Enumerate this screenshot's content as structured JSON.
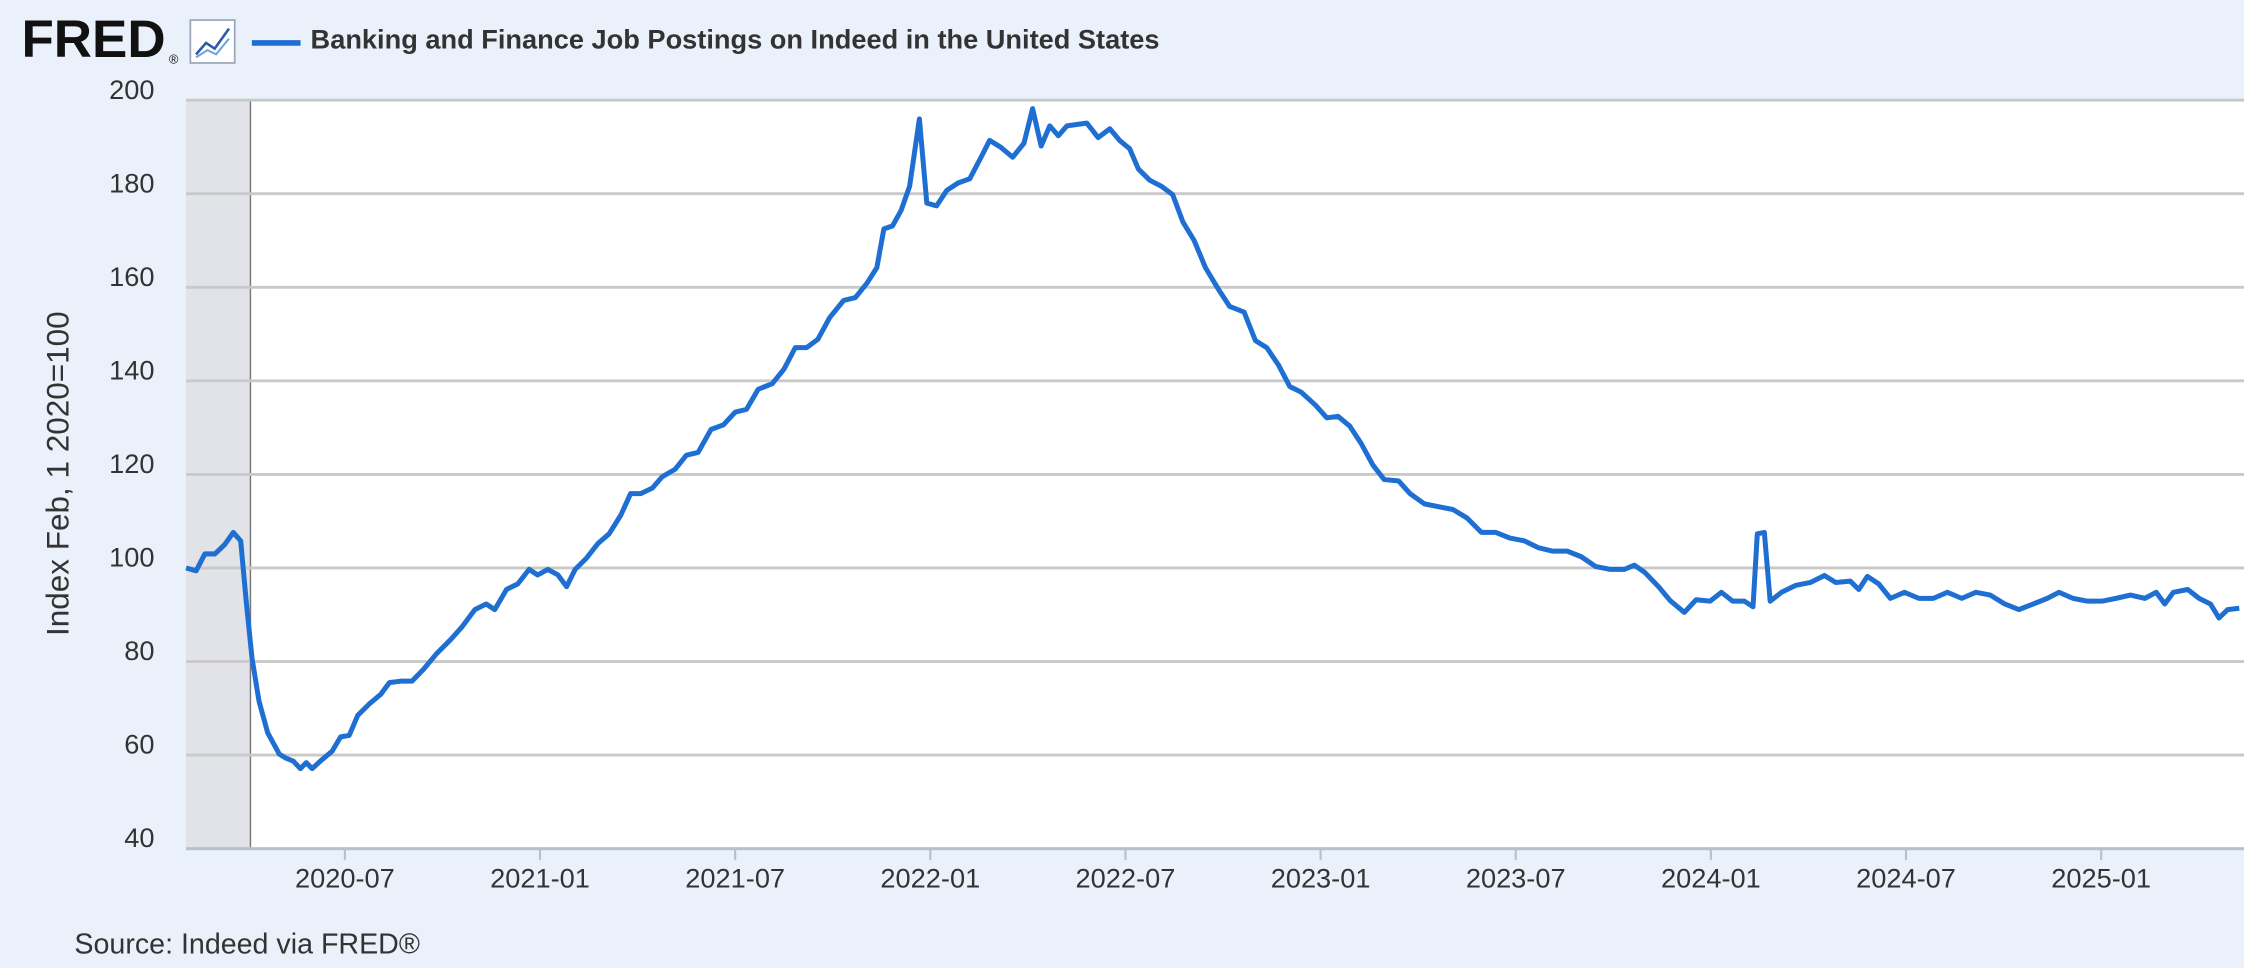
{
  "chart_data": {
    "type": "line",
    "logo": "FRED",
    "logo_mark": "®",
    "ylabel": "Index Feb, 1 2020=100",
    "source": "Source: Indeed via FRED®",
    "xlim": [
      2020.093,
      2025.366
    ],
    "ylim": [
      40,
      200
    ],
    "yticks": [
      40,
      60,
      80,
      100,
      120,
      140,
      160,
      180,
      200
    ],
    "xticks": [
      {
        "value": 2020.5,
        "label": "2020-07"
      },
      {
        "value": 2021.0,
        "label": "2021-01"
      },
      {
        "value": 2021.5,
        "label": "2021-07"
      },
      {
        "value": 2022.0,
        "label": "2022-01"
      },
      {
        "value": 2022.5,
        "label": "2022-07"
      },
      {
        "value": 2023.0,
        "label": "2023-01"
      },
      {
        "value": 2023.5,
        "label": "2023-07"
      },
      {
        "value": 2024.0,
        "label": "2024-01"
      },
      {
        "value": 2024.5,
        "label": "2024-07"
      },
      {
        "value": 2025.0,
        "label": "2025-01"
      }
    ],
    "grid": true,
    "shaded_ranges": [
      [
        2020.093,
        2020.258
      ]
    ],
    "shade_color": "#e1e3e8",
    "x": [
      2020.093,
      2020.119,
      2020.141,
      2020.167,
      2020.192,
      2020.214,
      2020.233,
      2020.247,
      2020.262,
      2020.28,
      2020.302,
      2020.332,
      2020.35,
      2020.368,
      2020.386,
      2020.401,
      2020.416,
      2020.441,
      2020.467,
      2020.489,
      2020.511,
      2020.533,
      2020.562,
      2020.592,
      2020.614,
      2020.643,
      2020.672,
      2020.701,
      2020.734,
      2020.771,
      2020.8,
      2020.833,
      2020.862,
      2020.884,
      2020.914,
      2020.943,
      2020.972,
      2020.994,
      2021.02,
      2021.046,
      2021.068,
      2021.09,
      2021.119,
      2021.148,
      2021.177,
      2021.207,
      2021.232,
      2021.258,
      2021.288,
      2021.313,
      2021.346,
      2021.375,
      2021.405,
      2021.438,
      2021.47,
      2021.5,
      2021.529,
      2021.559,
      2021.595,
      2021.625,
      2021.654,
      2021.683,
      2021.712,
      2021.742,
      2021.778,
      2021.808,
      2021.837,
      2021.863,
      2021.881,
      2021.903,
      2021.925,
      2021.947,
      2021.972,
      2021.991,
      2022.016,
      2022.042,
      2022.071,
      2022.101,
      2022.13,
      2022.152,
      2022.181,
      2022.211,
      2022.24,
      2022.262,
      2022.284,
      2022.306,
      2022.328,
      2022.35,
      2022.375,
      2022.401,
      2022.43,
      2022.46,
      2022.485,
      2022.511,
      2022.533,
      2022.562,
      2022.592,
      2022.621,
      2022.647,
      2022.676,
      2022.705,
      2022.738,
      2022.767,
      2022.804,
      2022.833,
      2022.862,
      2022.892,
      2022.921,
      2022.95,
      2022.987,
      2023.016,
      2023.045,
      2023.075,
      2023.104,
      2023.134,
      2023.163,
      2023.2,
      2023.229,
      2023.266,
      2023.302,
      2023.339,
      2023.375,
      2023.412,
      2023.449,
      2023.485,
      2023.522,
      2023.559,
      2023.595,
      2023.632,
      2023.668,
      2023.705,
      2023.742,
      2023.778,
      2023.804,
      2023.83,
      2023.866,
      2023.896,
      2023.932,
      2023.962,
      2023.998,
      2024.027,
      2024.056,
      2024.086,
      2024.108,
      2024.119,
      2024.137,
      2024.152,
      2024.181,
      2024.218,
      2024.255,
      2024.291,
      2024.32,
      2024.357,
      2024.379,
      2024.401,
      2024.43,
      2024.46,
      2024.496,
      2024.533,
      2024.57,
      2024.606,
      2024.643,
      2024.679,
      2024.716,
      2024.753,
      2024.789,
      2024.826,
      2024.862,
      2024.892,
      2024.928,
      2024.965,
      2025.002,
      2025.038,
      2025.075,
      2025.112,
      2025.141,
      2025.163,
      2025.185,
      2025.222,
      2025.251,
      2025.28,
      2025.302,
      2025.324,
      2025.354
    ],
    "series": [
      {
        "name": "Banking and Finance Job Postings on Indeed in the United States",
        "color": "#1f6fd3",
        "values": [
          100,
          99.4,
          103,
          103,
          105,
          107.6,
          105.8,
          93,
          80.7,
          71.5,
          64.8,
          60.2,
          59.3,
          58.7,
          57.1,
          58.4,
          57.1,
          59,
          60.8,
          63.9,
          64.2,
          68.5,
          70.9,
          73,
          75.5,
          75.8,
          75.8,
          78.3,
          81.6,
          84.7,
          87.4,
          91.1,
          92.3,
          91.1,
          95.4,
          96.6,
          99.7,
          98.5,
          99.7,
          98.5,
          96,
          99.7,
          102.1,
          105.2,
          107.3,
          111.3,
          115.9,
          115.9,
          117.1,
          119.5,
          121.1,
          124.1,
          124.7,
          129.6,
          130.6,
          133.3,
          133.9,
          138.2,
          139.4,
          142.5,
          147.1,
          147.1,
          148.9,
          153.5,
          157.2,
          157.8,
          160.8,
          164.2,
          172.5,
          173.1,
          176.4,
          181.6,
          196,
          178,
          177.4,
          180.7,
          182.3,
          183.2,
          187.8,
          191.4,
          189.9,
          187.8,
          190.8,
          198.2,
          190.2,
          194.5,
          192.4,
          194.5,
          194.8,
          195.1,
          192,
          193.9,
          191.4,
          189.6,
          185.3,
          182.9,
          181.6,
          179.8,
          174,
          170,
          164.2,
          159.6,
          155.9,
          154.7,
          148.6,
          147.1,
          143.4,
          138.8,
          137.6,
          134.8,
          132.1,
          132.4,
          130.3,
          126.6,
          122,
          118.9,
          118.6,
          115.9,
          113.7,
          113.1,
          112.5,
          110.7,
          107.6,
          107.6,
          106.4,
          105.8,
          104.3,
          103.6,
          103.6,
          102.4,
          100.3,
          99.7,
          99.7,
          100.6,
          99.1,
          96,
          93,
          90.5,
          93.2,
          92.9,
          94.8,
          92.9,
          92.9,
          91.7,
          107.3,
          107.6,
          92.9,
          94.8,
          96.3,
          96.9,
          98.4,
          96.9,
          97.2,
          95.4,
          98.2,
          96.6,
          93.5,
          94.8,
          93.5,
          93.5,
          94.8,
          93.5,
          94.8,
          94.2,
          92.3,
          91.1,
          92.3,
          93.5,
          94.8,
          93.5,
          92.9,
          92.9,
          93.5,
          94.2,
          93.5,
          94.8,
          92.3,
          94.8,
          95.4,
          93.5,
          92.3,
          89.3,
          91.1,
          91.4
        ]
      }
    ]
  }
}
